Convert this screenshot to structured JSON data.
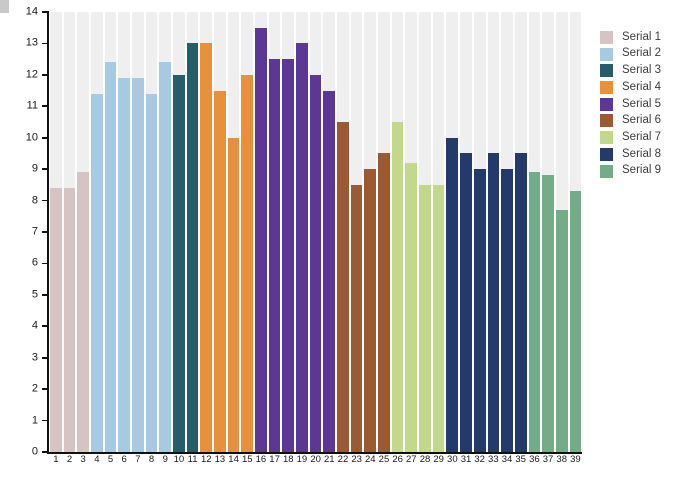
{
  "chart_data": {
    "type": "bar",
    "title": "",
    "xlabel": "",
    "ylabel": "",
    "ylim": [
      0,
      14
    ],
    "yticks": [
      0,
      1,
      2,
      3,
      4,
      5,
      6,
      7,
      8,
      9,
      10,
      11,
      12,
      13,
      14
    ],
    "categories": [
      "1",
      "2",
      "3",
      "4",
      "5",
      "6",
      "7",
      "8",
      "9",
      "10",
      "11",
      "12",
      "13",
      "14",
      "15",
      "16",
      "17",
      "18",
      "19",
      "20",
      "21",
      "22",
      "23",
      "24",
      "25",
      "26",
      "27",
      "28",
      "29",
      "30",
      "31",
      "32",
      "33",
      "34",
      "35",
      "36",
      "37",
      "38",
      "39"
    ],
    "grid": false,
    "background": "striped-columns",
    "legend_position": "top-right",
    "series": [
      {
        "name": "Serial 1",
        "color": "#d6c3c4",
        "x": [
          1,
          2,
          3
        ],
        "values": [
          8.4,
          8.4,
          8.9
        ]
      },
      {
        "name": "Serial 2",
        "color": "#a7c9e2",
        "x": [
          4,
          5,
          6,
          7,
          8,
          9
        ],
        "values": [
          11.4,
          12.4,
          11.9,
          11.9,
          11.4,
          12.4
        ]
      },
      {
        "name": "Serial 3",
        "color": "#265d69",
        "x": [
          10,
          11
        ],
        "values": [
          12.0,
          13.0
        ]
      },
      {
        "name": "Serial 4",
        "color": "#e8913d",
        "x": [
          12,
          13,
          14,
          15
        ],
        "values": [
          13.0,
          11.5,
          10.0,
          12.0
        ]
      },
      {
        "name": "Serial 5",
        "color": "#5d3794",
        "x": [
          16,
          17,
          18,
          19,
          20,
          21
        ],
        "values": [
          13.5,
          12.5,
          12.5,
          13.0,
          12.0,
          11.5
        ]
      },
      {
        "name": "Serial 6",
        "color": "#9a5a33",
        "x": [
          22,
          23,
          24,
          25
        ],
        "values": [
          10.5,
          8.5,
          9.0,
          9.5
        ]
      },
      {
        "name": "Serial 7",
        "color": "#c3d88c",
        "x": [
          26,
          27,
          28,
          29
        ],
        "values": [
          10.5,
          9.2,
          8.5,
          8.5
        ]
      },
      {
        "name": "Serial 8",
        "color": "#243a6b",
        "x": [
          30,
          31,
          32,
          33,
          34,
          35
        ],
        "values": [
          10.0,
          9.5,
          9.0,
          9.5,
          9.0,
          9.5
        ]
      },
      {
        "name": "Serial 9",
        "color": "#74ac88",
        "x": [
          36,
          37,
          38,
          39
        ],
        "values": [
          8.9,
          8.8,
          7.7,
          8.3
        ]
      }
    ]
  }
}
